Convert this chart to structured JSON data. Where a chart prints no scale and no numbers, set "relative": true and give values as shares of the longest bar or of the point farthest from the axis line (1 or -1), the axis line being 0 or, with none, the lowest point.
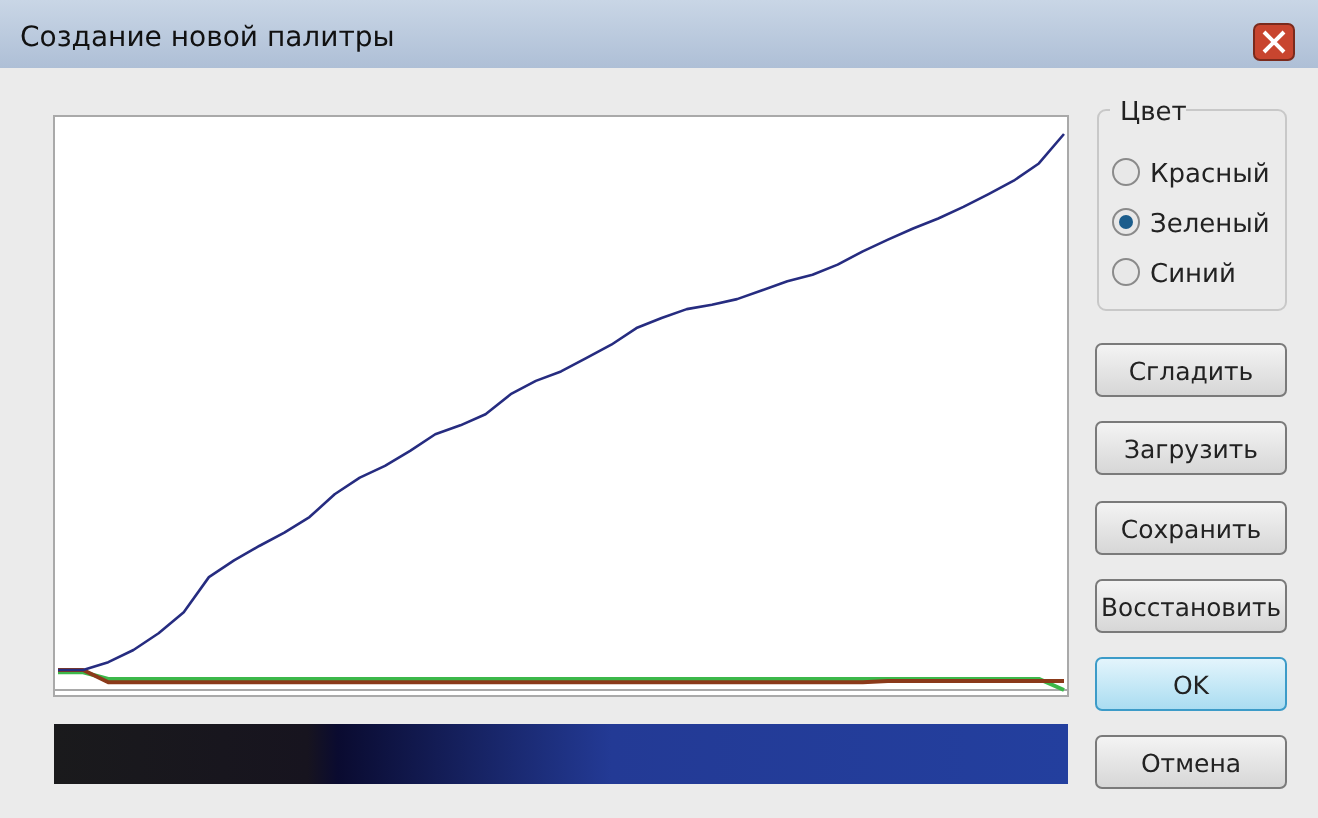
{
  "chart_data": {
    "type": "line",
    "title": "Создание новой палитры",
    "relative": true,
    "categories": [
      null,
      null,
      null,
      null,
      null,
      null,
      null,
      null,
      null,
      null,
      null,
      null,
      null,
      null,
      null,
      null,
      null,
      null,
      null,
      null,
      null,
      null,
      null,
      null,
      null,
      null,
      null,
      null,
      null,
      null,
      null,
      null,
      null,
      null,
      null,
      null,
      null,
      null,
      null,
      null,
      null
    ],
    "series": [
      {
        "color": "#3cb84a",
        "values": [
          0.032,
          0.032,
          0.02,
          0.02,
          0.02,
          0.02,
          0.02,
          0.02,
          0.02,
          0.02,
          0.02,
          0.02,
          0.02,
          0.02,
          0.02,
          0.02,
          0.02,
          0.02,
          0.02,
          0.02,
          0.02,
          0.02,
          0.02,
          0.02,
          0.02,
          0.02,
          0.02,
          0.02,
          0.02,
          0.02,
          0.02,
          0.02,
          0.02,
          0.02,
          0.02,
          0.02,
          0.02,
          0.02,
          0.02,
          0.02,
          0
        ]
      },
      {
        "color": "#8b3a1a",
        "values": [
          0.036,
          0.036,
          0.014,
          0.014,
          0.014,
          0.014,
          0.014,
          0.014,
          0.014,
          0.014,
          0.014,
          0.014,
          0.014,
          0.014,
          0.014,
          0.014,
          0.014,
          0.014,
          0.014,
          0.014,
          0.014,
          0.014,
          0.014,
          0.014,
          0.014,
          0.014,
          0.014,
          0.014,
          0.014,
          0.014,
          0.014,
          0.014,
          0.014,
          0.016,
          0.016,
          0.016,
          0.016,
          0.016,
          0.016,
          0.016,
          0.016
        ]
      },
      {
        "color": "#262c80",
        "values": [
          0.036,
          0.036,
          0.05,
          0.072,
          0.102,
          0.14,
          0.203,
          0.233,
          0.259,
          0.283,
          0.311,
          0.352,
          0.382,
          0.403,
          0.43,
          0.46,
          0.476,
          0.496,
          0.532,
          0.556,
          0.573,
          0.597,
          0.621,
          0.651,
          0.669,
          0.685,
          0.693,
          0.703,
          0.719,
          0.735,
          0.747,
          0.765,
          0.789,
          0.81,
          0.83,
          0.848,
          0.869,
          0.892,
          0.916,
          0.947,
          1.0
        ]
      }
    ],
    "annotations": [
      "Цвет",
      "Красный",
      "Зеленый",
      "Синий",
      "Сгладить",
      "Загрузить",
      "Сохранить",
      "Восстановить",
      "OK",
      "Отмена"
    ],
    "marker": "none",
    "line_style": "solid"
  }
}
